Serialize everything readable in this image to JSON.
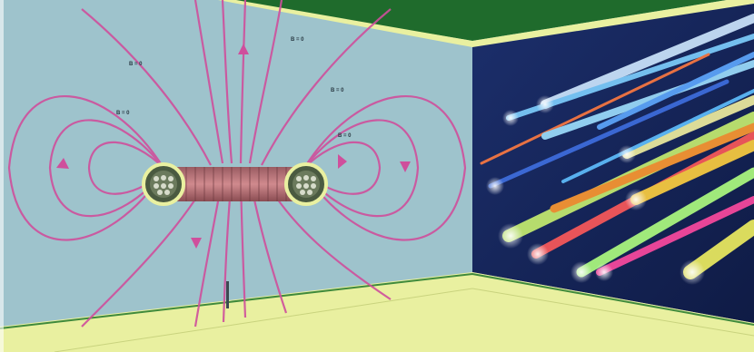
{
  "scene": {
    "wall_field_labels": [
      "B = 0",
      "B = 0",
      "B = 0",
      "B = 0",
      "B = 0"
    ],
    "colors": {
      "left_wall": "#9ec3cc",
      "field_lines": "#cf4f9c",
      "ceiling": "#1f6b2c",
      "floor_band": "#e9f0a0",
      "right_wall": "#16285e",
      "coil": "#b4707a"
    }
  }
}
